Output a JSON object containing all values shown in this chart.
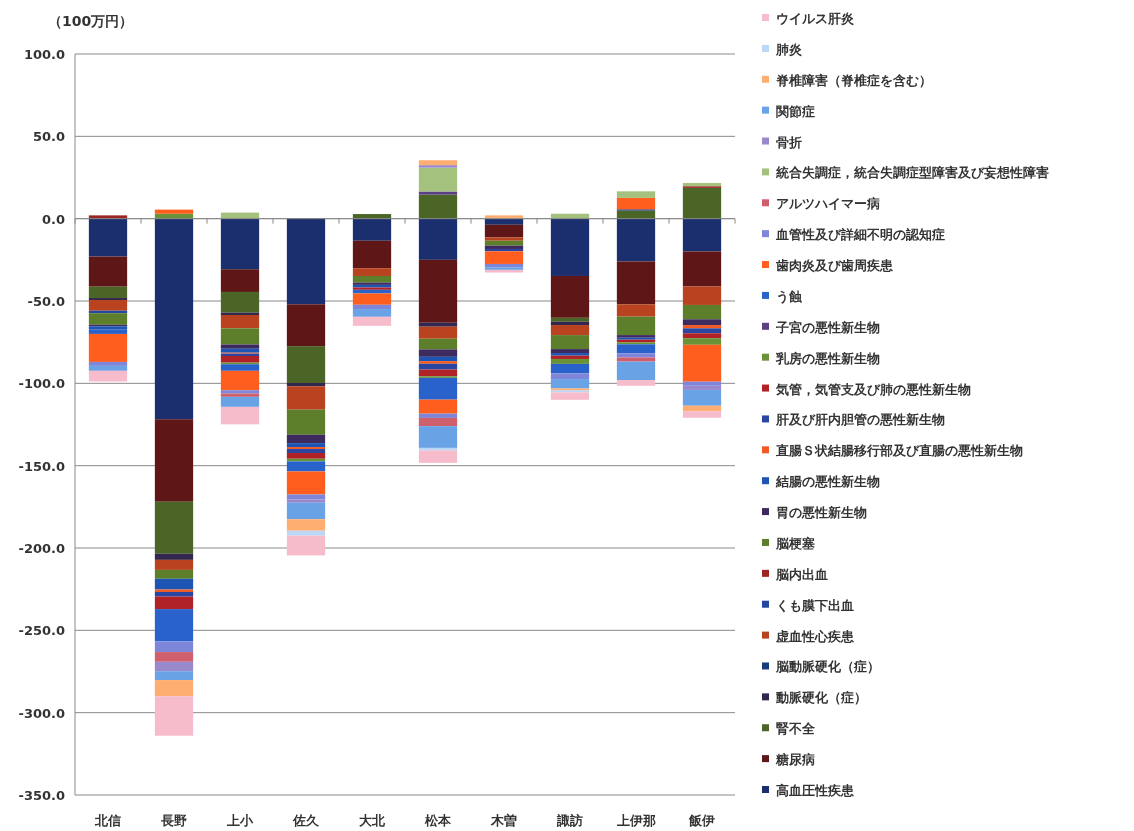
{
  "chart_data": {
    "type": "bar",
    "stacked": true,
    "ylabel": "（100万円）",
    "categories": [
      "北信",
      "長野",
      "上小",
      "佐久",
      "大北",
      "松本",
      "木曽",
      "諏訪",
      "上伊那",
      "飯伊"
    ],
    "ylim": [
      -350,
      100
    ],
    "yticks": [
      {
        "value": -350,
        "label": "-350.0"
      },
      {
        "value": -300,
        "label": "-300.0"
      },
      {
        "value": -250,
        "label": "-250.0"
      },
      {
        "value": -200,
        "label": "-200.0"
      },
      {
        "value": -150,
        "label": "-150.0"
      },
      {
        "value": -100,
        "label": "-100.0"
      },
      {
        "value": -50,
        "label": "-50.0"
      },
      {
        "value": 0,
        "label": "0.0"
      },
      {
        "value": 50,
        "label": "50.0"
      },
      {
        "value": 100,
        "label": "100.0"
      }
    ],
    "grid": "y",
    "legend": "right",
    "series": [
      {
        "name": "高血圧性疾患",
        "color": "#1b2f6e",
        "values": [
          -23,
          -121.8,
          -30.7,
          -52,
          -13.4,
          -25,
          -3.7,
          -34.8,
          -26,
          -19.9
        ]
      },
      {
        "name": "糖尿病",
        "color": "#5e1616",
        "values": [
          -18.3,
          -50.1,
          -13.8,
          -25.4,
          -16.7,
          -38.2,
          -7.7,
          -25.4,
          -26,
          -21.3
        ]
      },
      {
        "name": "腎不全",
        "color": "#4a6526",
        "values": [
          -6.9,
          -31.6,
          -12.6,
          -22.4,
          2.8,
          14.6,
          null,
          -2.4,
          4.9,
          18.7
        ]
      },
      {
        "name": "動脈硬化（症）",
        "color": "#33264f",
        "values": [
          -1.2,
          -3.7,
          -1.4,
          -2,
          null,
          -2.4,
          null,
          -2,
          null,
          null
        ]
      },
      {
        "name": "脳動脈硬化（症）",
        "color": "#173d7a",
        "values": [
          null,
          null,
          null,
          null,
          null,
          null,
          null,
          null,
          0.8,
          null
        ]
      },
      {
        "name": "虚血性心疾患",
        "color": "#b8431e",
        "values": [
          -6.5,
          -6.1,
          -8.1,
          -14.2,
          -4.7,
          -7.3,
          -2,
          -6.1,
          -7.5,
          -11.2
        ]
      },
      {
        "name": "くも膜下出血",
        "color": "#2448a0",
        "values": [
          -1.5,
          null,
          null,
          null,
          null,
          null,
          null,
          null,
          null,
          null
        ]
      },
      {
        "name": "脳内出血",
        "color": "#9b2424",
        "values": [
          2,
          null,
          null,
          null,
          null,
          null,
          null,
          null,
          null,
          1
        ]
      },
      {
        "name": "脳梗塞",
        "color": "#5d7f2c",
        "values": [
          -7,
          -5.4,
          -9.8,
          -15.2,
          -4,
          -6.5,
          -3,
          -8.5,
          -11.2,
          -8.7
        ]
      },
      {
        "name": "胃の悪性新生物",
        "color": "#3d2a5e",
        "values": [
          -1,
          null,
          -2.6,
          -5.1,
          -1.4,
          -4.5,
          -2,
          -2.4,
          -1.6,
          -3.5
        ]
      },
      {
        "name": "結腸の悪性新生物",
        "color": "#1e55b4",
        "values": [
          -2,
          -6.5,
          -2.4,
          -2.4,
          -1.6,
          -2.6,
          null,
          -1.6,
          -1.2,
          null
        ]
      },
      {
        "name": "直腸Ｓ状結腸移行部及び直腸の悪性新生物",
        "color": "#f05a24",
        "values": [
          null,
          -1.5,
          -0.6,
          -1.2,
          null,
          -1.6,
          null,
          null,
          null,
          -2
        ]
      },
      {
        "name": "肝及び肝内胆管の悪性新生物",
        "color": "#2a46a0",
        "values": [
          null,
          -2.8,
          -1.4,
          -2.4,
          null,
          -3.5,
          -1.4,
          null,
          null,
          -3
        ]
      },
      {
        "name": "気管，気管支及び肺の悪性新生物",
        "color": "#b02228",
        "values": [
          null,
          -7.6,
          -4,
          -3.5,
          -1.4,
          -4.1,
          null,
          -2,
          -1.6,
          -3
        ]
      },
      {
        "name": "乳房の悪性新生物",
        "color": "#6a9236",
        "values": [
          null,
          3,
          -1,
          -1.6,
          null,
          -1,
          null,
          -3,
          -1.2,
          -4
        ]
      },
      {
        "name": "子宮の悪性新生物",
        "color": "#5a3f82",
        "values": [
          null,
          null,
          null,
          null,
          null,
          1.9,
          null,
          null,
          null,
          null
        ]
      },
      {
        "name": "う蝕",
        "color": "#2a62cc",
        "values": [
          -2.6,
          -19.6,
          -4,
          -6.1,
          -2.2,
          -13.2,
          null,
          -5.7,
          -5.5,
          null
        ]
      },
      {
        "name": "歯肉炎及び歯周疾患",
        "color": "#ff5e1e",
        "values": [
          -17,
          2.5,
          -11.8,
          -14,
          -6.9,
          -8.5,
          -7.7,
          null,
          6.9,
          -22.4
        ]
      },
      {
        "name": "血管性及び詳細不明の認知症",
        "color": "#7d86d8",
        "values": [
          -2.4,
          -6.5,
          -2,
          -3,
          -2.6,
          -2.6,
          -2,
          -3.5,
          -2.5,
          -2.5
        ]
      },
      {
        "name": "アルツハイマー病",
        "color": "#cf5f6c",
        "values": [
          null,
          -5.9,
          -2,
          null,
          null,
          -5,
          null,
          null,
          -2.5,
          null
        ]
      },
      {
        "name": "統合失調症，統合失調症型障害及び妄想性障害",
        "color": "#a4c27e",
        "values": [
          null,
          null,
          3.7,
          null,
          null,
          14.5,
          null,
          3,
          4,
          2
        ]
      },
      {
        "name": "骨折",
        "color": "#9a88cc",
        "values": [
          null,
          -5.7,
          null,
          -2,
          null,
          1.5,
          null,
          null,
          null,
          -2.5
        ]
      },
      {
        "name": "関節症",
        "color": "#6aa2e6",
        "values": [
          -3,
          -5.4,
          -6.1,
          -10,
          -4.7,
          -13.2,
          -1.6,
          -5.7,
          -11.2,
          -9.6
        ]
      },
      {
        "name": "脊椎障害（脊椎症を含む）",
        "color": "#ffae72",
        "values": [
          null,
          -9.8,
          null,
          -7,
          null,
          3,
          2,
          -1.2,
          null,
          -3.3
        ]
      },
      {
        "name": "肺炎",
        "color": "#bcd6f6",
        "values": [
          null,
          null,
          null,
          -3,
          null,
          -1.6,
          null,
          -1.2,
          null,
          null
        ]
      },
      {
        "name": "ウイルス肝炎",
        "color": "#f7bccb",
        "values": [
          -6.5,
          -24,
          -10.6,
          -12,
          -5.5,
          -7.5,
          -1.6,
          -4.5,
          -3.5,
          -4
        ]
      }
    ]
  }
}
